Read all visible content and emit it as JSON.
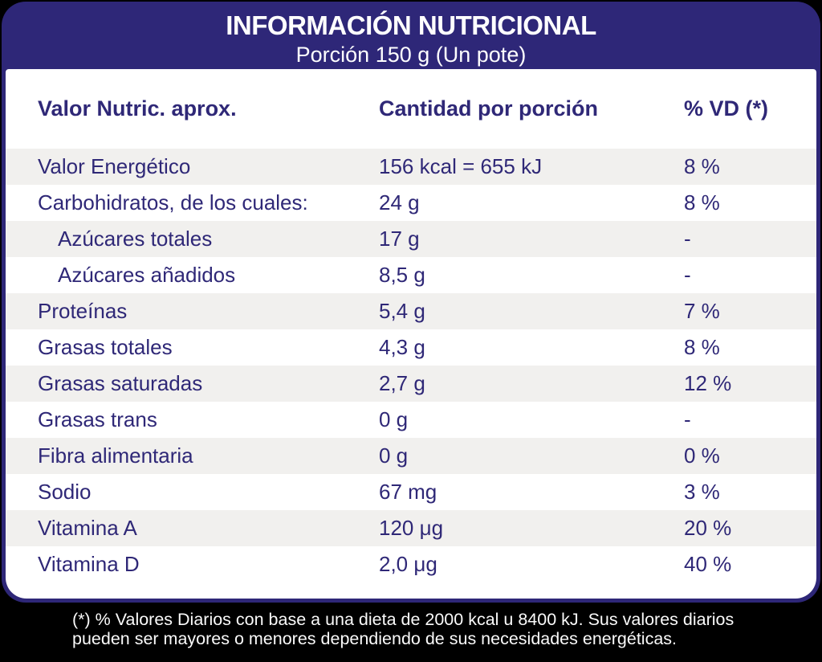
{
  "header": {
    "title": "INFORMACIÓN NUTRICIONAL",
    "subtitle": "Porción 150 g (Un pote)"
  },
  "table": {
    "columns": [
      "Valor Nutric. aprox.",
      "Cantidad por porción",
      "% VD (*)"
    ],
    "rows": [
      {
        "label": "Valor Energético",
        "amount": "156 kcal = 655 kJ",
        "vd": "8 %",
        "indent": false
      },
      {
        "label": "Carbohidratos, de los cuales:",
        "amount": "24 g",
        "vd": "8 %",
        "indent": false
      },
      {
        "label": "Azúcares totales",
        "amount": "17 g",
        "vd": "-",
        "indent": true
      },
      {
        "label": "Azúcares añadidos",
        "amount": "8,5 g",
        "vd": "-",
        "indent": true
      },
      {
        "label": "Proteínas",
        "amount": "5,4 g",
        "vd": "7 %",
        "indent": false
      },
      {
        "label": "Grasas totales",
        "amount": "4,3 g",
        "vd": "8 %",
        "indent": false
      },
      {
        "label": "Grasas saturadas",
        "amount": "2,7 g",
        "vd": "12 %",
        "indent": false
      },
      {
        "label": "Grasas trans",
        "amount": "0 g",
        "vd": "-",
        "indent": false
      },
      {
        "label": "Fibra alimentaria",
        "amount": "0 g",
        "vd": "0 %",
        "indent": false
      },
      {
        "label": "Sodio",
        "amount": "67 mg",
        "vd": "3 %",
        "indent": false
      },
      {
        "label": "Vitamina A",
        "amount": "120 μg",
        "vd": "20 %",
        "indent": false
      },
      {
        "label": "Vitamina D",
        "amount": "2,0 μg",
        "vd": "40 %",
        "indent": false
      }
    ]
  },
  "footer": {
    "note_line1": "(*) % Valores Diarios con base a una dieta de 2000 kcal u 8400 kJ. Sus valores diarios",
    "note_line2": "pueden ser mayores o menores dependiendo de sus necesidades energéticas."
  },
  "colors": {
    "navy": "#2E2778",
    "text": "#2F2877",
    "stripe": "#F1F0EE",
    "page_background": "#000000",
    "panel_background": "#FFFFFF"
  }
}
